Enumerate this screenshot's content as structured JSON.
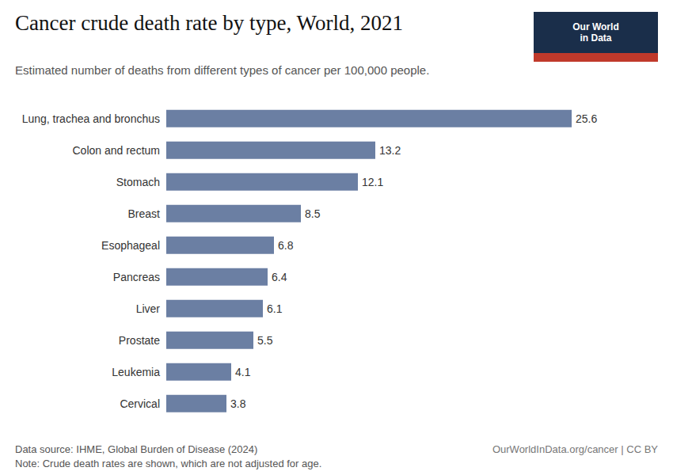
{
  "chart_data": {
    "type": "bar",
    "orientation": "horizontal",
    "title": "Cancer crude death rate by type, World, 2021",
    "subtitle": "Estimated number of deaths from different types of cancer per 100,000 people.",
    "categories": [
      "Lung, trachea and bronchus",
      "Colon and rectum",
      "Stomach",
      "Breast",
      "Esophageal",
      "Pancreas",
      "Liver",
      "Prostate",
      "Leukemia",
      "Cervical"
    ],
    "values": [
      25.6,
      13.2,
      12.1,
      8.5,
      6.8,
      6.4,
      6.1,
      5.5,
      4.1,
      3.8
    ],
    "color": "#6b7fa3",
    "xlim": [
      0,
      29
    ],
    "grid": false,
    "data_labels": true,
    "tick_labels": "y",
    "annotations": [
      "Data source: IHME, Global Burden of Disease (2024)",
      "Note: Crude death rates are shown, which are not adjusted for age.",
      "OurWorldInData.org/cancer | CC BY",
      "Our World",
      "in Data"
    ]
  }
}
